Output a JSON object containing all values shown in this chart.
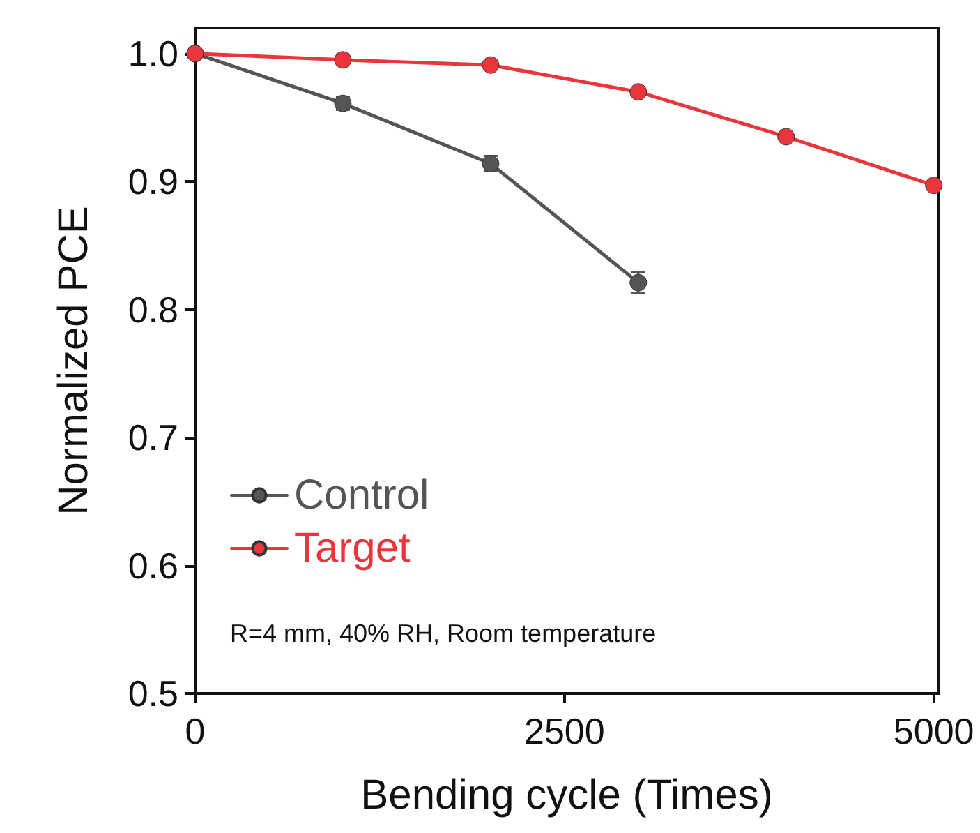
{
  "chart_data": {
    "type": "line",
    "xlabel": "Bending cycle (Times)",
    "ylabel": "Normalized PCE",
    "x": [
      0,
      1000,
      2000,
      3000,
      4000,
      5000
    ],
    "series": [
      {
        "name": "Control",
        "color": "#555555",
        "values": [
          1.0,
          0.961,
          0.914,
          0.821,
          null,
          null
        ],
        "errors": [
          null,
          0.005,
          0.006,
          0.008,
          null,
          null
        ]
      },
      {
        "name": "Target",
        "color": "#e8363c",
        "values": [
          1.0,
          0.995,
          0.991,
          0.97,
          0.935,
          0.897
        ]
      }
    ],
    "xlim": [
      0,
      5030
    ],
    "xticks": [
      0,
      2500,
      5000
    ],
    "ylim": [
      0.5,
      1.02
    ],
    "yticks": [
      {
        "value": 0.5,
        "label": "0.5"
      },
      {
        "value": 0.6,
        "label": "0.6"
      },
      {
        "value": 0.7,
        "label": "0.7"
      },
      {
        "value": 0.8,
        "label": "0.8"
      },
      {
        "value": 0.9,
        "label": "0.9"
      },
      {
        "value": 1,
        "label": "1.0"
      }
    ],
    "annotations": [
      "R=4 mm, 40% RH, Room temperature"
    ],
    "legend": "bottom left",
    "marker": "circle",
    "line_style": "solid",
    "grid": false
  }
}
